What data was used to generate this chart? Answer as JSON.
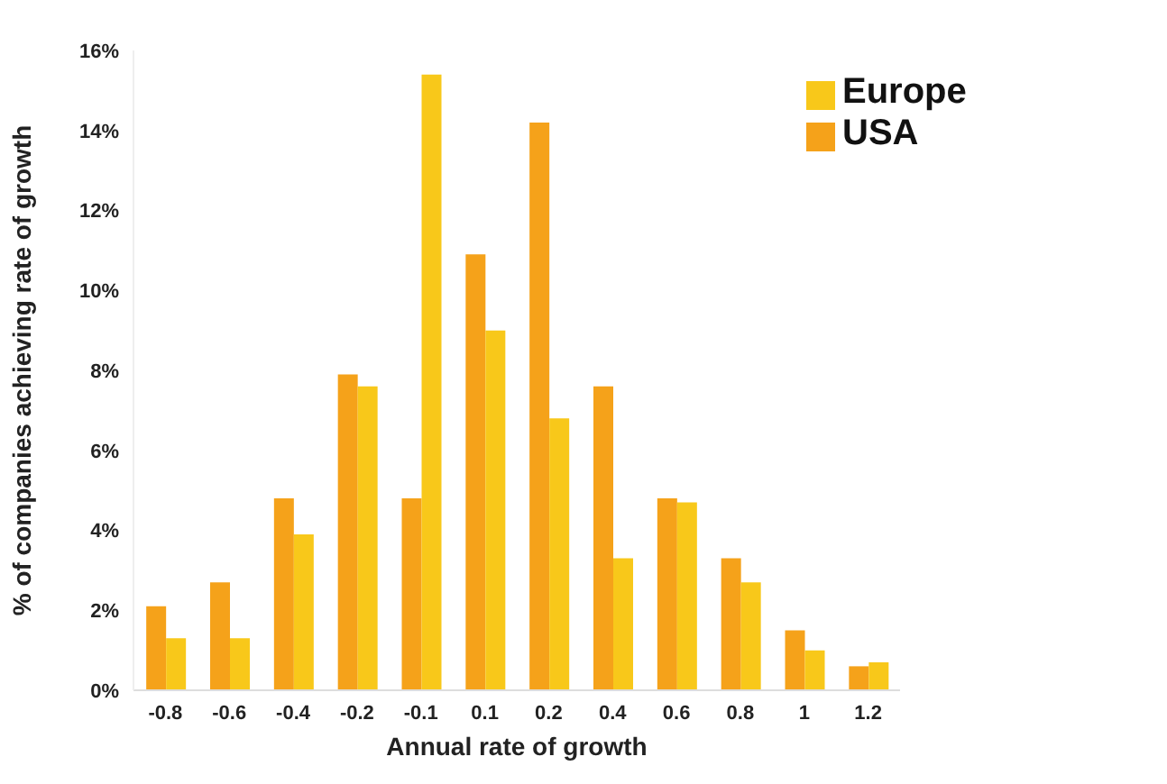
{
  "chart_data": {
    "type": "bar",
    "xlabel": "Annual rate of growth",
    "ylabel": "% of companies achieving rate of growth",
    "categories": [
      "-0.8",
      "-0.6",
      "-0.4",
      "-0.2",
      "-0.1",
      "0.1",
      "0.2",
      "0.4",
      "0.6",
      "0.8",
      "1",
      "1.2"
    ],
    "series": [
      {
        "name": "USA",
        "color": "#f5a21a",
        "values": [
          2.1,
          2.7,
          4.8,
          7.9,
          4.8,
          10.9,
          14.2,
          7.6,
          4.8,
          3.3,
          1.5,
          0.6
        ]
      },
      {
        "name": "Europe",
        "color": "#f8c81a",
        "values": [
          1.3,
          1.3,
          3.9,
          7.6,
          15.4,
          9.0,
          6.8,
          3.3,
          4.7,
          2.7,
          1.0,
          0.7
        ]
      }
    ],
    "ylim": [
      0,
      16
    ],
    "yticks": [
      {
        "value": 0,
        "label": "0%"
      },
      {
        "value": 2,
        "label": "2%"
      },
      {
        "value": 4,
        "label": "4%"
      },
      {
        "value": 6,
        "label": "6%"
      },
      {
        "value": 8,
        "label": "8%"
      },
      {
        "value": 10,
        "label": "10%"
      },
      {
        "value": 12,
        "label": "12%"
      },
      {
        "value": 14,
        "label": "14%"
      },
      {
        "value": 16,
        "label": "16%"
      }
    ],
    "grid": false,
    "legend": "top right"
  }
}
